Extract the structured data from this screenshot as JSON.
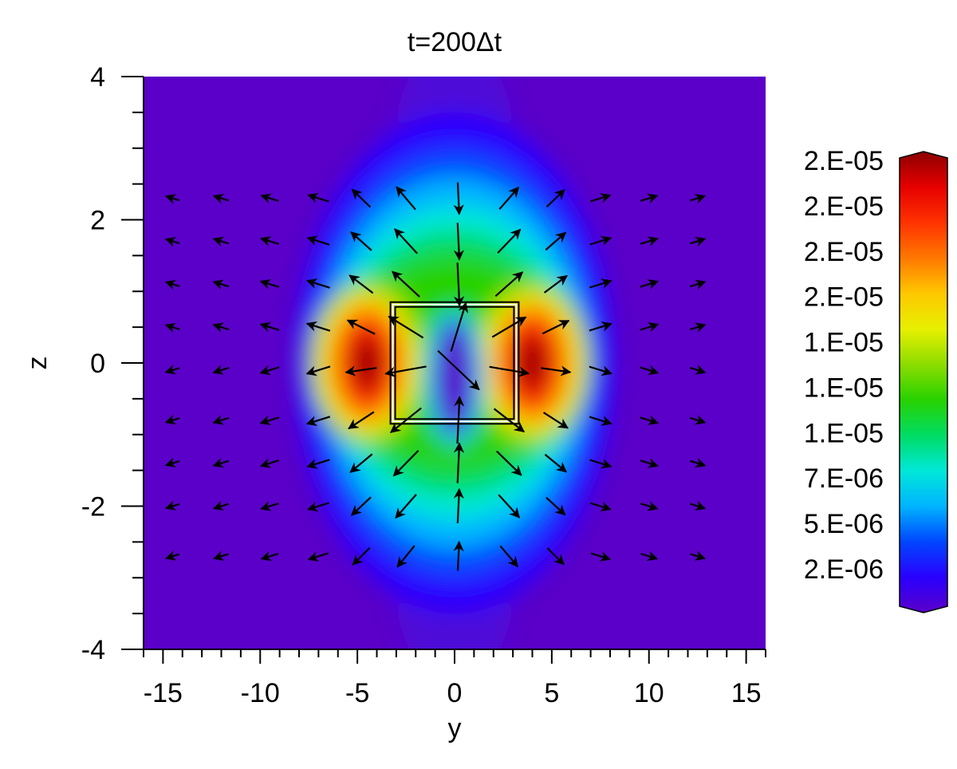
{
  "chart_data": {
    "type": "heatmap",
    "title": "t=200Δt",
    "xlabel": "y",
    "ylabel": "z",
    "xlim": [
      -16,
      16
    ],
    "ylim": [
      -4,
      4
    ],
    "x_ticks": [
      -15,
      -10,
      -5,
      0,
      5,
      10,
      15
    ],
    "x_tick_labels": [
      "-15",
      "-10",
      "-5",
      "0",
      "5",
      "10",
      "15"
    ],
    "y_ticks": [
      4,
      2,
      0,
      -2,
      -4
    ],
    "y_tick_labels": [
      "4",
      "2",
      "0",
      "-2",
      "-4"
    ],
    "colorbar": {
      "labels": [
        "2.E-05",
        "2.E-05",
        "2.E-05",
        "2.E-05",
        "1.E-05",
        "1.E-05",
        "1.E-05",
        "7.E-06",
        "5.E-06",
        "2.E-06"
      ],
      "colormap": [
        "#5a00c8",
        "#2a00ff",
        "#0046ff",
        "#00b4ff",
        "#00e8d8",
        "#00dc64",
        "#28d200",
        "#8cdc00",
        "#e6f000",
        "#ffc800",
        "#ff7800",
        "#ff3200",
        "#e60000",
        "#8c0000"
      ]
    },
    "background_color": "#5a00c8",
    "hotspots": [
      {
        "y": -4.5,
        "z": 0.0,
        "level": "max"
      },
      {
        "y": 4.0,
        "z": 0.0,
        "level": "max"
      },
      {
        "y": 0.0,
        "z": -0.2,
        "level": "min"
      }
    ],
    "box": {
      "y": [
        -3.3,
        3.3
      ],
      "z": [
        -0.85,
        0.85
      ]
    },
    "vectors": {
      "grid_y": [
        -14.5,
        -12,
        -9.5,
        -7,
        -4.8,
        -2.5,
        0.2,
        2.8,
        5.2,
        7.5,
        10,
        12.5
      ],
      "grid_z": [
        2.3,
        1.7,
        1.1,
        0.5,
        -0.1,
        -0.8,
        -1.4,
        -2.0,
        -2.7
      ]
    }
  }
}
